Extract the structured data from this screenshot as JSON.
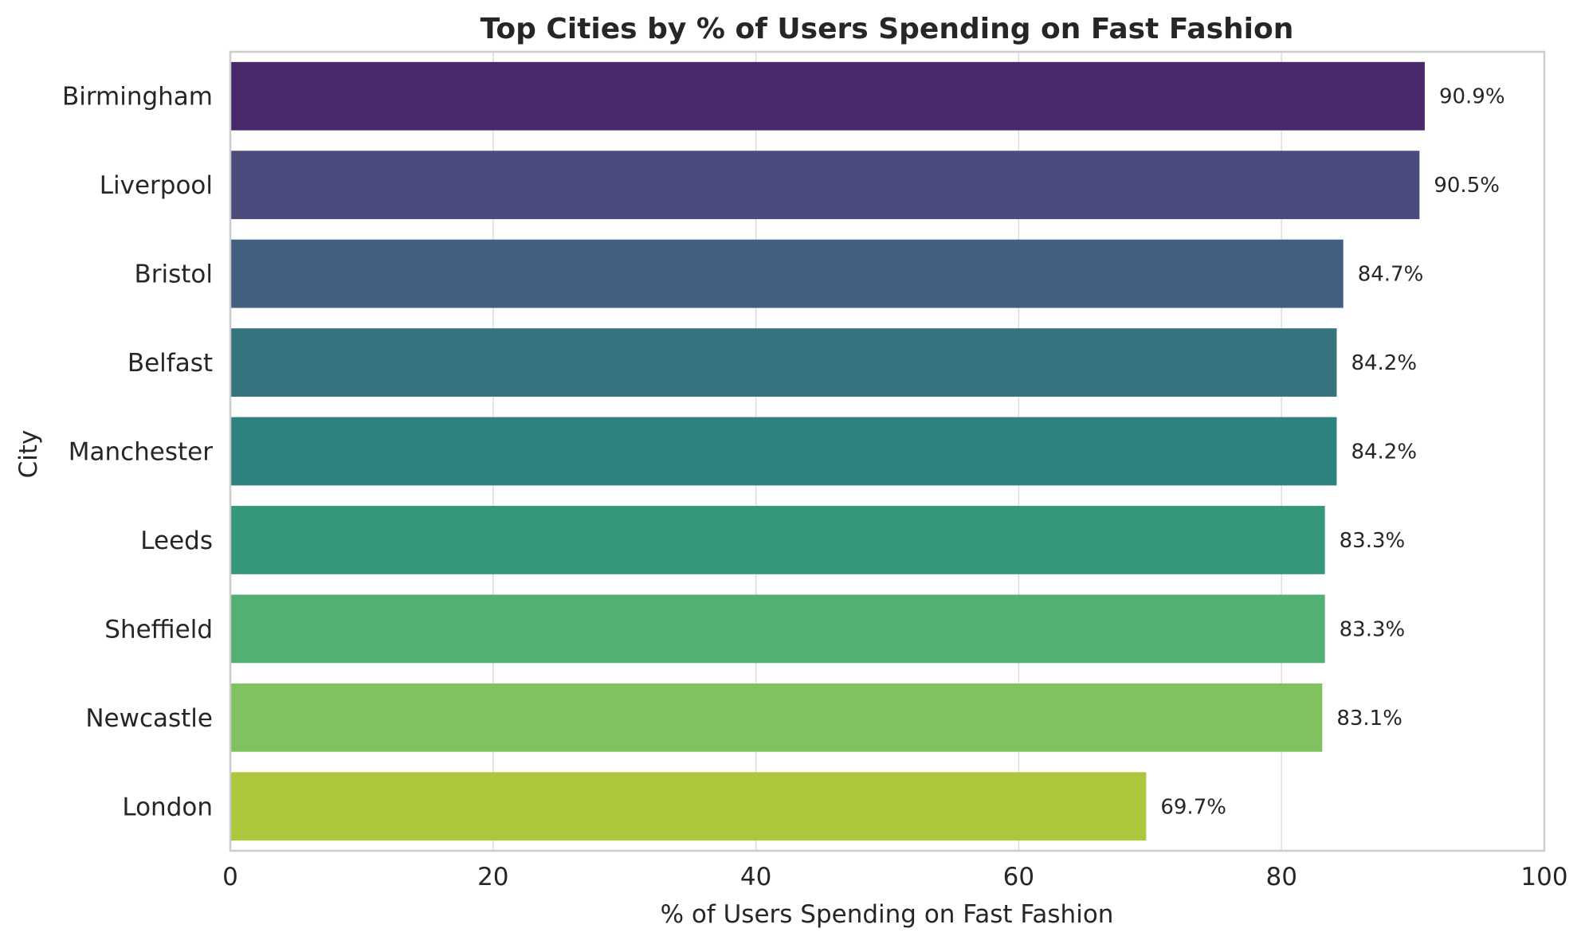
{
  "chart_data": {
    "type": "bar",
    "orientation": "horizontal",
    "title": "Top Cities by % of Users Spending on Fast Fashion",
    "xlabel": "% of Users Spending on Fast Fashion",
    "ylabel": "City",
    "xlim": [
      0,
      100
    ],
    "xticks": [
      "0",
      "20",
      "40",
      "60",
      "80",
      "100"
    ],
    "grid": true,
    "categories": [
      "Birmingham",
      "Liverpool",
      "Bristol",
      "Belfast",
      "Manchester",
      "Leeds",
      "Sheffield",
      "Newcastle",
      "London"
    ],
    "values": [
      90.9,
      90.5,
      84.7,
      84.2,
      84.2,
      83.3,
      83.3,
      83.1,
      69.7
    ],
    "value_labels": [
      "90.9%",
      "90.5%",
      "84.7%",
      "84.2%",
      "84.2%",
      "83.3%",
      "83.3%",
      "83.1%",
      "69.7%"
    ],
    "colors": [
      "#482a6b",
      "#4a4c7e",
      "#416082",
      "#36737f",
      "#2e837e",
      "#35987b",
      "#52b073",
      "#81c260",
      "#adc73c"
    ]
  }
}
